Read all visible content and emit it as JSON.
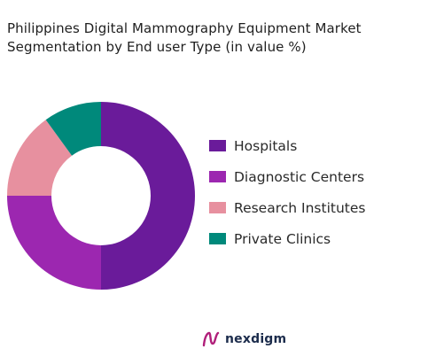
{
  "title": {
    "line1": "Philippines Digital Mammography Equipment Market",
    "line2": "Segmentation by End user Type (in value %)"
  },
  "chart_data": {
    "type": "pie",
    "donut": true,
    "title": "Philippines Digital Mammography Equipment Market Segmentation by End user Type (in value %)",
    "categories": [
      "Hospitals",
      "Diagnostic Centers",
      "Research Institutes",
      "Private Clinics"
    ],
    "values": [
      50,
      25,
      15,
      10
    ],
    "colors": [
      "#6a1b9a",
      "#9c27b0",
      "#e7909f",
      "#00897b"
    ],
    "legend": "right"
  },
  "legend": {
    "items": [
      {
        "label": "Hospitals",
        "color": "#6a1b9a"
      },
      {
        "label": "Diagnostic Centers",
        "color": "#9c27b0"
      },
      {
        "label": "Research Institutes",
        "color": "#e7909f"
      },
      {
        "label": "Private Clinics",
        "color": "#00897b"
      }
    ]
  },
  "brand": {
    "name": "nexdigm",
    "logo_icon": "nexdigm-logo-icon",
    "logo_color": "#b01f7a"
  }
}
